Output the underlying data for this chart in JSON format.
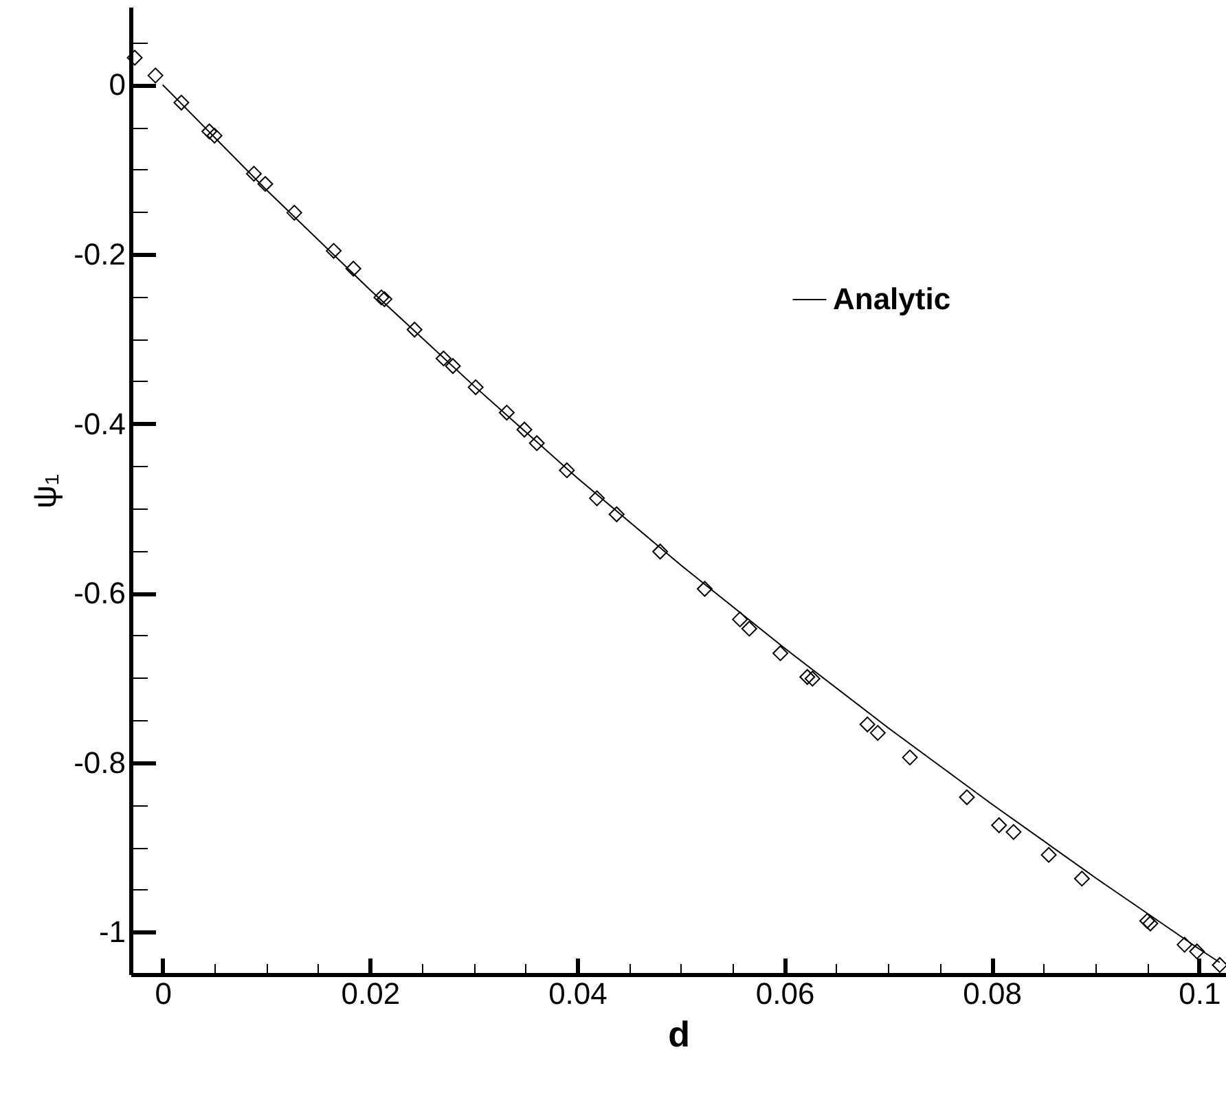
{
  "chart_data": {
    "type": "scatter",
    "xlabel": "d",
    "ylabel": "ψ₁",
    "xlim": [
      -0.0031,
      0.1026
    ],
    "ylim": [
      -1.05,
      0.092
    ],
    "xticks": [
      0,
      {
        "value": 0.005,
        "label": null
      },
      {
        "value": 0.01,
        "label": null
      },
      {
        "value": 0.015,
        "label": null
      },
      0.02,
      {
        "value": 0.025,
        "label": null
      },
      {
        "value": 0.03,
        "label": null
      },
      {
        "value": 0.035,
        "label": null
      },
      0.04,
      {
        "value": 0.045,
        "label": null
      },
      {
        "value": 0.05,
        "label": null
      },
      {
        "value": 0.055,
        "label": null
      },
      0.06,
      {
        "value": 0.065,
        "label": null
      },
      {
        "value": 0.07,
        "label": null
      },
      {
        "value": 0.075,
        "label": null
      },
      0.08,
      {
        "value": 0.085,
        "label": null
      },
      {
        "value": 0.09,
        "label": null
      },
      {
        "value": 0.095,
        "label": null
      },
      0.1
    ],
    "yticks": [
      {
        "value": -1.05,
        "label": null
      },
      -1,
      {
        "value": -0.95,
        "label": null
      },
      {
        "value": -0.9,
        "label": null
      },
      {
        "value": -0.85,
        "label": null
      },
      -0.8,
      {
        "value": -0.75,
        "label": null
      },
      {
        "value": -0.7,
        "label": null
      },
      {
        "value": -0.65,
        "label": null
      },
      -0.6,
      {
        "value": -0.55,
        "label": null
      },
      {
        "value": -0.5,
        "label": null
      },
      {
        "value": -0.45,
        "label": null
      },
      -0.4,
      {
        "value": -0.35,
        "label": null
      },
      {
        "value": -0.3,
        "label": null
      },
      {
        "value": -0.25,
        "label": null
      },
      -0.2,
      {
        "value": -0.15,
        "label": null
      },
      {
        "value": -0.1,
        "label": null
      },
      {
        "value": -0.05,
        "label": null
      },
      0,
      {
        "value": 0.05,
        "label": null
      }
    ],
    "grid": false,
    "legend": "top right",
    "series": [
      {
        "color": "#000000",
        "marker": "diamond",
        "x": [
          -0.0027,
          -0.0007,
          0.0018,
          0.0045,
          0.005,
          0.0088,
          0.0099,
          0.0127,
          0.0165,
          0.0184,
          0.0211,
          0.0214,
          0.0243,
          0.0271,
          0.028,
          0.0302,
          0.0332,
          0.0349,
          0.0361,
          0.039,
          0.0419,
          0.0438,
          0.048,
          0.0523,
          0.0557,
          0.0566,
          0.0596,
          0.0622,
          0.0627,
          0.068,
          0.069,
          0.0721,
          0.0776,
          0.0807,
          0.0821,
          0.0855,
          0.0887,
          0.095,
          0.0953,
          0.0986,
          0.0998,
          0.102
        ],
        "values": [
          0.032,
          0.011,
          -0.021,
          -0.055,
          -0.06,
          -0.105,
          -0.117,
          -0.151,
          -0.196,
          -0.217,
          -0.251,
          -0.253,
          -0.289,
          -0.323,
          -0.332,
          -0.357,
          -0.387,
          -0.407,
          -0.423,
          -0.455,
          -0.488,
          -0.507,
          -0.551,
          -0.595,
          -0.631,
          -0.642,
          -0.671,
          -0.699,
          -0.701,
          -0.755,
          -0.765,
          -0.794,
          -0.841,
          -0.874,
          -0.882,
          -0.909,
          -0.937,
          -0.987,
          -0.99,
          -1.015,
          -1.023,
          -1.039
        ]
      },
      {
        "type": "line",
        "name": "Analytic",
        "color": "#000000",
        "x": [
          0,
          0.01,
          0.02,
          0.03,
          0.04,
          0.05,
          0.06,
          0.07,
          0.08,
          0.09,
          0.1,
          0.102
        ],
        "values": [
          0,
          -0.124,
          -0.242,
          -0.355,
          -0.464,
          -0.567,
          -0.665,
          -0.759,
          -0.849,
          -0.936,
          -1.02,
          -1.036
        ]
      }
    ]
  }
}
